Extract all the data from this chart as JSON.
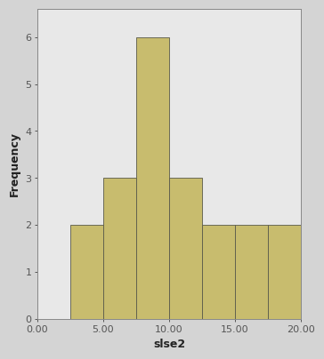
{
  "bin_edges": [
    0,
    2.5,
    5.0,
    7.5,
    10.0,
    12.5,
    15.0,
    17.5,
    20.0
  ],
  "frequencies": [
    0,
    2,
    3,
    6,
    3,
    2,
    2,
    2
  ],
  "bar_color": "#c8bc6e",
  "bar_edge_color": "#5a5a4a",
  "bar_edge_width": 0.6,
  "xlabel": "slse2",
  "ylabel": "Frequency",
  "xlim": [
    0,
    20
  ],
  "ylim": [
    0,
    6.6
  ],
  "xticks": [
    0.0,
    5.0,
    10.0,
    15.0,
    20.0
  ],
  "xticklabels": [
    "0.00",
    "5.00",
    "10.00",
    "15.00",
    "20.00"
  ],
  "yticks": [
    0,
    1,
    2,
    3,
    4,
    5,
    6
  ],
  "plot_bg_color": "#e8e8e8",
  "fig_bg_color": "#d4d4d4",
  "xlabel_fontsize": 9,
  "ylabel_fontsize": 9,
  "tick_fontsize": 8,
  "xlabel_bold": true,
  "ylabel_bold": true
}
